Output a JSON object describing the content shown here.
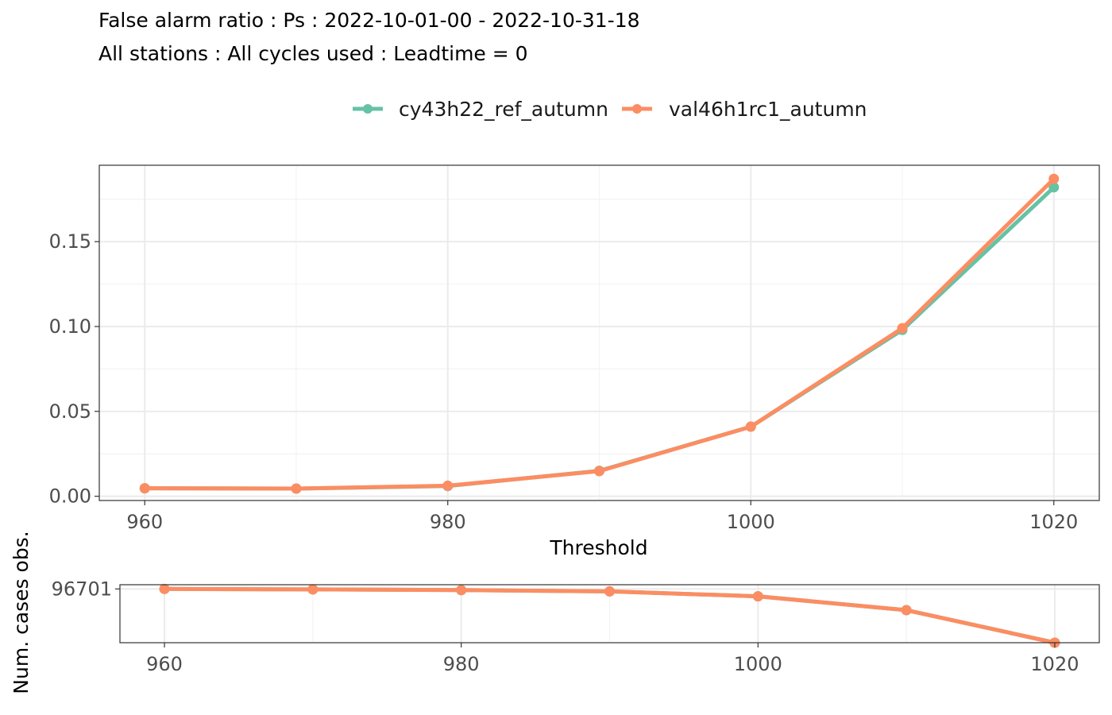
{
  "header": {
    "title": "False alarm ratio : Ps : 2022-10-01-00 - 2022-10-31-18",
    "subtitle": "All stations : All cycles used : Leadtime = 0"
  },
  "colors": {
    "series_1": "#66c2a5",
    "series_2": "#fc8d62"
  },
  "chart_data": [
    {
      "type": "line",
      "title": "False alarm ratio : Ps : 2022-10-01-00 - 2022-10-31-18",
      "subtitle": "All stations : All cycles used : Leadtime = 0",
      "xlabel": "Threshold",
      "ylabel": "",
      "x": [
        960,
        970,
        980,
        990,
        1000,
        1010,
        1020
      ],
      "xlim": [
        957,
        1023
      ],
      "ylim": [
        -0.0025,
        0.195
      ],
      "xticks": [
        960,
        980,
        1000,
        1020
      ],
      "yticks": [
        0.0,
        0.05,
        0.1,
        0.15
      ],
      "ytick_labels": [
        "0.00",
        "0.05",
        "0.10",
        "0.15"
      ],
      "grid": true,
      "legend_position": "top",
      "series": [
        {
          "name": "cy43h22_ref_autumn",
          "values": [
            0.0047,
            0.0045,
            0.006,
            0.015,
            0.041,
            0.098,
            0.182
          ]
        },
        {
          "name": "val46h1rc1_autumn",
          "values": [
            0.0047,
            0.0045,
            0.0062,
            0.0148,
            0.041,
            0.099,
            0.187
          ]
        }
      ]
    },
    {
      "type": "line",
      "title": "",
      "xlabel": "",
      "ylabel": "Num. cases obs.",
      "x": [
        960,
        970,
        980,
        990,
        1000,
        1010,
        1020
      ],
      "xlim": [
        957,
        1023
      ],
      "ylim": [
        96460,
        96720
      ],
      "xticks": [
        960,
        980,
        1000,
        1020
      ],
      "yticks": [
        96701
      ],
      "ytick_labels": [
        "96701"
      ],
      "grid": true,
      "series": [
        {
          "name": "cy43h22_ref_autumn",
          "values": [
            96701,
            96699,
            96696,
            96690,
            96668,
            96606,
            96460
          ]
        },
        {
          "name": "val46h1rc1_autumn",
          "values": [
            96701,
            96699,
            96696,
            96690,
            96668,
            96606,
            96460
          ]
        }
      ]
    }
  ]
}
